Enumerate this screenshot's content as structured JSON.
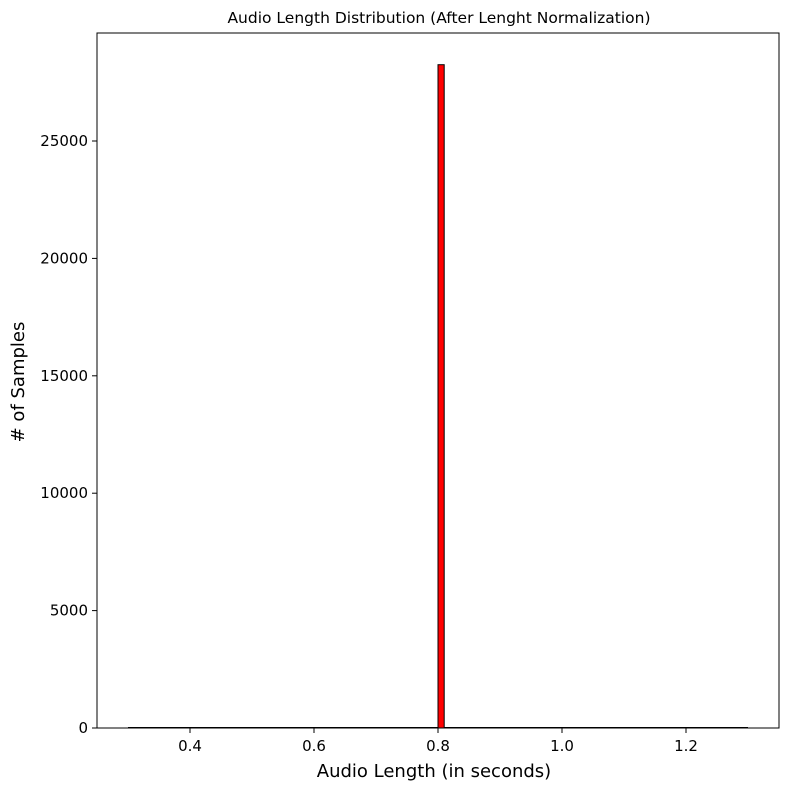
{
  "chart_data": {
    "type": "bar",
    "title": "Audio Length Distribution (After Lenght Normalization)",
    "xlabel": "Audio Length (in seconds)",
    "ylabel": "# of Samples",
    "xlim": [
      0.25,
      1.35
    ],
    "ylim": [
      0,
      29600
    ],
    "xticks": [
      0.4,
      0.6,
      0.8,
      1.0,
      1.2
    ],
    "xtick_labels": [
      "0.4",
      "0.6",
      "0.8",
      "1.0",
      "1.2"
    ],
    "yticks": [
      0,
      5000,
      10000,
      15000,
      20000,
      25000
    ],
    "ytick_labels": [
      "0",
      "5000",
      "10000",
      "15000",
      "20000",
      "25000"
    ],
    "bar_color": "#ff0000",
    "edge_color": "#000000",
    "bins": [
      {
        "x0": 0.3,
        "x1": 0.8,
        "value": 0
      },
      {
        "x0": 0.8,
        "x1": 0.81,
        "value": 28250
      },
      {
        "x0": 0.81,
        "x1": 1.3,
        "value": 0
      }
    ],
    "grid": false,
    "legend": "none"
  }
}
